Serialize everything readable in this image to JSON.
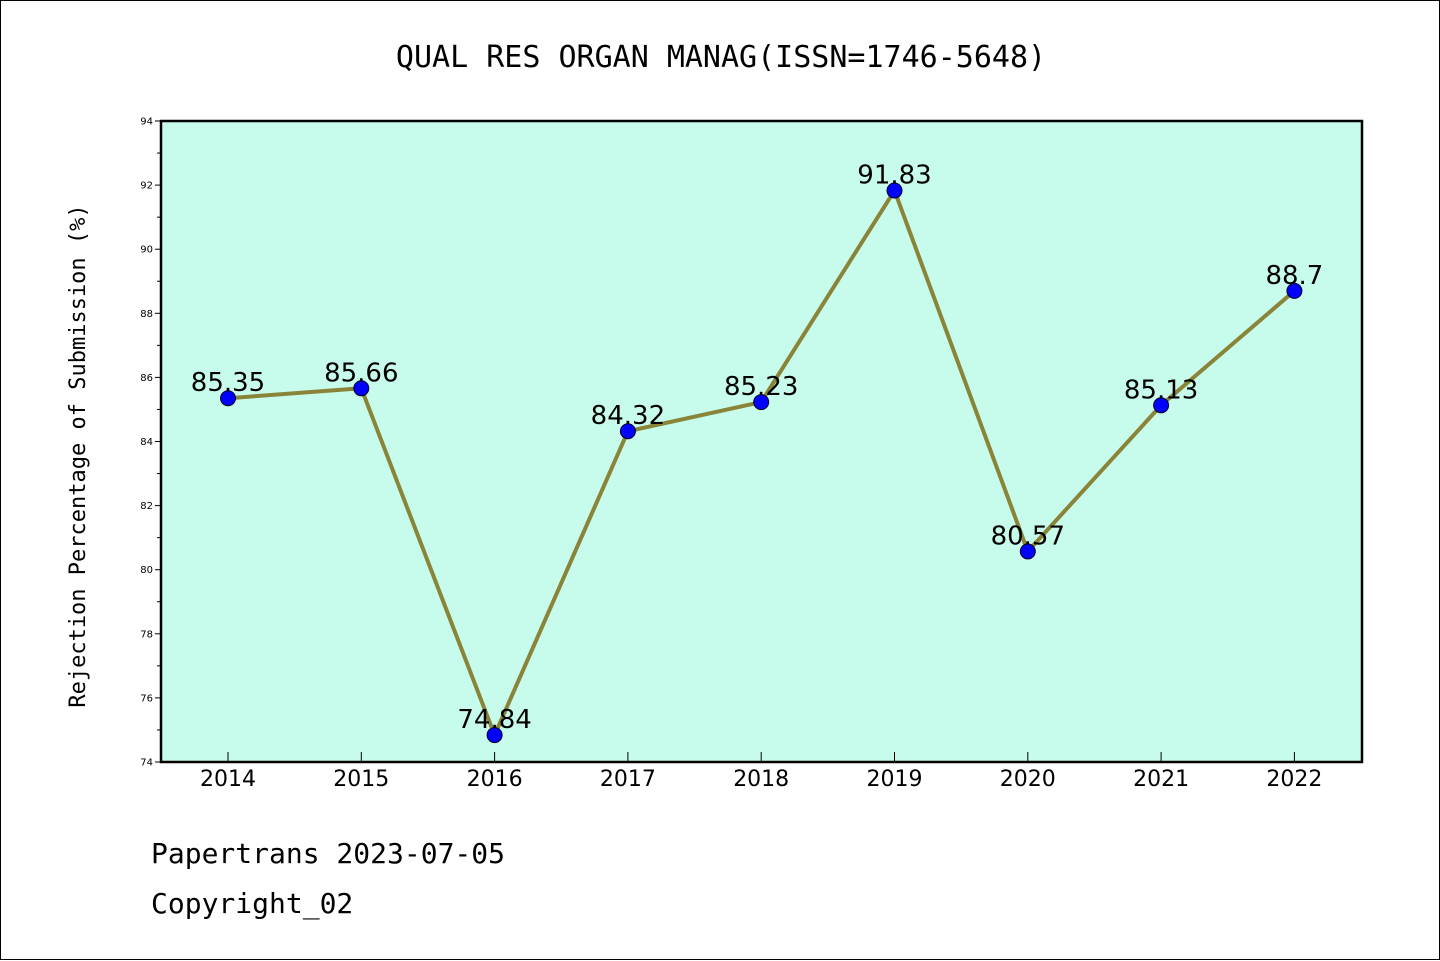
{
  "chart_data": {
    "type": "line",
    "title": "QUAL RES ORGAN MANAG(ISSN=1746-5648)",
    "xlabel": "",
    "ylabel": "Rejection Percentage of Submission (%)",
    "categories": [
      "2014",
      "2015",
      "2016",
      "2017",
      "2018",
      "2019",
      "2020",
      "2021",
      "2022"
    ],
    "series": [
      {
        "values": [
          85.35,
          85.66,
          74.84,
          84.32,
          85.23,
          91.83,
          80.57,
          85.13,
          88.7
        ],
        "labels": [
          "85.35",
          "85.66",
          "74.84",
          "84.32",
          "85.23",
          "91.83",
          "80.57",
          "85.13",
          "88.7"
        ]
      }
    ],
    "ylim": [
      74,
      94
    ],
    "yticks": [
      "74",
      "76",
      "78",
      "80",
      "82",
      "84",
      "86",
      "88",
      "90",
      "92",
      "94"
    ],
    "grid": false,
    "colors": {
      "plot_background": "#c7fcec",
      "line": "#8a8439",
      "marker": "#0000ff"
    }
  },
  "footer": {
    "date_text": "Papertrans 2023-07-05",
    "copyright_text": "Copyright_02"
  }
}
